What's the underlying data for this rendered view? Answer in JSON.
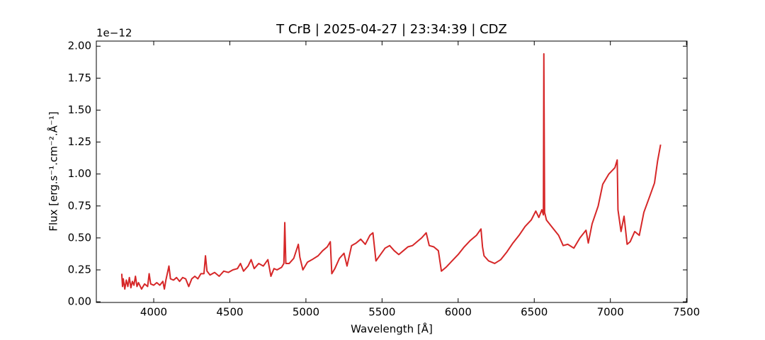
{
  "chart_data": {
    "type": "line",
    "title": "T CrB | 2025-04-27 | 23:34:39 | CDZ",
    "x_label": "Wavelength [Å]",
    "y_label": "Flux [erg.s⁻¹.cm⁻².Å⁻¹]",
    "offset_text": "1e−12",
    "xlim": [
      3623,
      7504
    ],
    "ylim": [
      -0.005,
      2.04
    ],
    "xticks": [
      4000,
      4500,
      5000,
      5500,
      6000,
      6500,
      7000,
      7500
    ],
    "yticks": [
      {
        "value": 0,
        "label": "0.00"
      },
      0.25,
      {
        "value": 0.5,
        "label": "0.50"
      },
      0.75,
      {
        "value": 1,
        "label": "1.00"
      },
      1.25,
      {
        "value": 1.5,
        "label": "1.50"
      },
      1.75,
      {
        "value": 2,
        "label": "2.00"
      }
    ],
    "x": [
      3790,
      3795,
      3800,
      3810,
      3820,
      3830,
      3840,
      3850,
      3860,
      3870,
      3880,
      3890,
      3900,
      3920,
      3940,
      3960,
      3970,
      3980,
      4000,
      4020,
      4040,
      4060,
      4070,
      4080,
      4100,
      4110,
      4130,
      4150,
      4170,
      4190,
      4210,
      4230,
      4250,
      4270,
      4290,
      4310,
      4330,
      4340,
      4350,
      4370,
      4400,
      4430,
      4460,
      4490,
      4520,
      4550,
      4570,
      4590,
      4620,
      4640,
      4660,
      4690,
      4720,
      4750,
      4770,
      4790,
      4810,
      4840,
      4855,
      4861,
      4868,
      4890,
      4920,
      4950,
      4960,
      4980,
      5010,
      5040,
      5080,
      5110,
      5140,
      5160,
      5170,
      5190,
      5220,
      5250,
      5270,
      5300,
      5330,
      5360,
      5390,
      5420,
      5440,
      5460,
      5490,
      5520,
      5550,
      5580,
      5610,
      5640,
      5670,
      5700,
      5730,
      5760,
      5790,
      5810,
      5840,
      5870,
      5890,
      5920,
      5960,
      6000,
      6040,
      6080,
      6120,
      6150,
      6160,
      6170,
      6200,
      6240,
      6280,
      6320,
      6360,
      6400,
      6440,
      6480,
      6510,
      6530,
      6550,
      6560,
      6563,
      6568,
      6580,
      6620,
      6660,
      6690,
      6720,
      6760,
      6800,
      6840,
      6855,
      6880,
      6920,
      6950,
      6990,
      7030,
      7045,
      7050,
      7070,
      7090,
      7110,
      7130,
      7160,
      7190,
      7220,
      7260,
      7290,
      7310,
      7330
    ],
    "series": [
      {
        "name": "T CrB",
        "color": "#d62728",
        "values": [
          0.22,
          0.12,
          0.18,
          0.1,
          0.17,
          0.12,
          0.19,
          0.11,
          0.16,
          0.13,
          0.2,
          0.12,
          0.15,
          0.1,
          0.14,
          0.12,
          0.22,
          0.14,
          0.13,
          0.15,
          0.13,
          0.16,
          0.1,
          0.17,
          0.28,
          0.18,
          0.17,
          0.19,
          0.16,
          0.19,
          0.18,
          0.12,
          0.18,
          0.2,
          0.18,
          0.22,
          0.22,
          0.36,
          0.24,
          0.21,
          0.23,
          0.2,
          0.24,
          0.23,
          0.25,
          0.26,
          0.3,
          0.24,
          0.28,
          0.33,
          0.26,
          0.3,
          0.28,
          0.33,
          0.2,
          0.26,
          0.25,
          0.27,
          0.3,
          0.62,
          0.3,
          0.3,
          0.34,
          0.45,
          0.35,
          0.25,
          0.31,
          0.33,
          0.36,
          0.4,
          0.43,
          0.47,
          0.22,
          0.26,
          0.34,
          0.38,
          0.28,
          0.44,
          0.46,
          0.49,
          0.45,
          0.52,
          0.54,
          0.32,
          0.37,
          0.42,
          0.44,
          0.4,
          0.37,
          0.4,
          0.43,
          0.44,
          0.47,
          0.5,
          0.54,
          0.44,
          0.43,
          0.4,
          0.24,
          0.27,
          0.32,
          0.37,
          0.43,
          0.48,
          0.52,
          0.57,
          0.43,
          0.36,
          0.32,
          0.3,
          0.33,
          0.39,
          0.46,
          0.52,
          0.59,
          0.64,
          0.71,
          0.66,
          0.72,
          0.68,
          1.94,
          0.7,
          0.64,
          0.58,
          0.52,
          0.44,
          0.45,
          0.42,
          0.5,
          0.56,
          0.46,
          0.61,
          0.75,
          0.92,
          1.0,
          1.05,
          1.11,
          0.72,
          0.55,
          0.67,
          0.45,
          0.47,
          0.55,
          0.52,
          0.7,
          0.83,
          0.93,
          1.1,
          1.23
        ]
      }
    ]
  }
}
